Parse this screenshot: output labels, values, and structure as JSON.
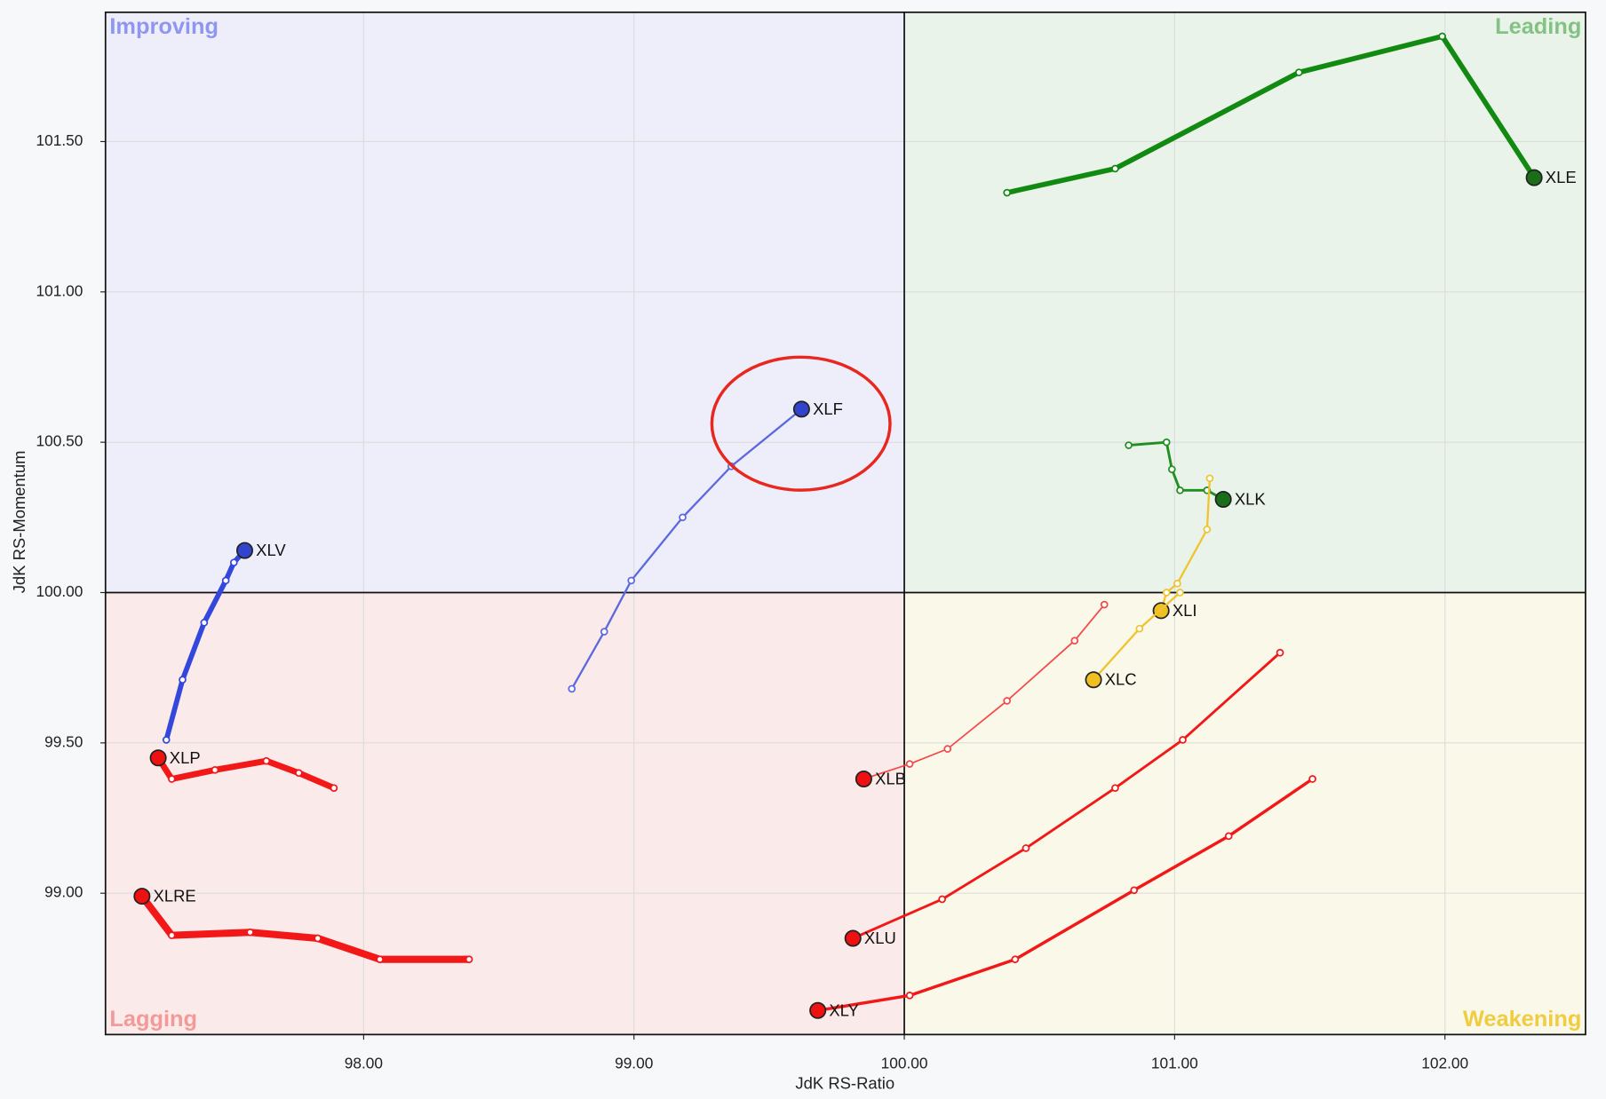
{
  "chart_data": {
    "type": "rrg",
    "x_label": "JdK RS-Ratio",
    "y_label": "JdK RS-Momentum",
    "quadrants": {
      "improving": "Improving",
      "leading": "Leading",
      "lagging": "Lagging",
      "weakening": "Weakening"
    },
    "xlim": [
      97.045,
      102.52
    ],
    "ylim": [
      98.53,
      101.93
    ],
    "xticks": [
      {
        "value": 98,
        "label": "98.00"
      },
      {
        "value": 99,
        "label": "99.00"
      },
      {
        "value": 100,
        "label": "100.00"
      },
      {
        "value": 101,
        "label": "101.00"
      },
      {
        "value": 102,
        "label": "102.00"
      }
    ],
    "yticks": [
      {
        "value": 99,
        "label": "99.00"
      },
      {
        "value": 99.5,
        "label": "99.50"
      },
      {
        "value": 100,
        "label": "100.00"
      },
      {
        "value": 100.5,
        "label": "100.50"
      },
      {
        "value": 101,
        "label": "101.00"
      },
      {
        "value": 101.5,
        "label": "101.50"
      }
    ],
    "grid": true,
    "series": [
      {
        "name": "XLE",
        "color": "#128a12",
        "head_color": "#1a6e1a",
        "line_width": 5,
        "x": [
          100.38,
          100.78,
          101.46,
          101.99,
          102.33
        ],
        "y": [
          101.33,
          101.41,
          101.73,
          101.85,
          101.38
        ]
      },
      {
        "name": "XLK",
        "color": "#1f8f1f",
        "head_color": "#1a6e1a",
        "line_width": 2.5,
        "x": [
          100.83,
          100.97,
          100.99,
          101.02,
          101.12,
          101.18
        ],
        "y": [
          100.49,
          100.5,
          100.41,
          100.34,
          100.34,
          100.31
        ]
      },
      {
        "name": "XLI",
        "color": "#efc42e",
        "head_color": "#f0c020",
        "line_width": 2,
        "x": [
          101.13,
          101.12,
          101.01,
          100.97,
          100.95
        ],
        "y": [
          100.38,
          100.21,
          100.03,
          100.0,
          99.94
        ]
      },
      {
        "name": "XLC",
        "color": "#efc42e",
        "head_color": "#f0c020",
        "line_width": 2,
        "x": [
          101.02,
          100.87,
          100.7
        ],
        "y": [
          100.0,
          99.88,
          99.71
        ]
      },
      {
        "name": "XLF",
        "color": "#5b68e0",
        "head_color": "#3344cc",
        "line_width": 2,
        "x": [
          98.77,
          98.89,
          98.99,
          99.18,
          99.36,
          99.62
        ],
        "y": [
          99.68,
          99.87,
          100.04,
          100.25,
          100.42,
          100.61
        ]
      },
      {
        "name": "XLV",
        "color": "#3347dd",
        "head_color": "#3344cc",
        "line_width": 5,
        "x": [
          97.27,
          97.33,
          97.41,
          97.49,
          97.52,
          97.56
        ],
        "y": [
          99.51,
          99.71,
          99.9,
          100.04,
          100.1,
          100.14
        ]
      },
      {
        "name": "XLP",
        "color": "#f21818",
        "head_color": "#ee1111",
        "line_width": 6,
        "x": [
          97.89,
          97.76,
          97.64,
          97.45,
          97.29,
          97.24
        ],
        "y": [
          99.35,
          99.4,
          99.44,
          99.41,
          99.38,
          99.45
        ]
      },
      {
        "name": "XLRE",
        "color": "#f21818",
        "head_color": "#ee1111",
        "line_width": 7,
        "x": [
          98.39,
          98.06,
          97.83,
          97.58,
          97.29,
          97.18
        ],
        "y": [
          98.78,
          98.78,
          98.85,
          98.87,
          98.86,
          98.99
        ]
      },
      {
        "name": "XLB",
        "color": "#f44848",
        "head_color": "#ee1111",
        "line_width": 1.5,
        "x": [
          100.74,
          100.63,
          100.38,
          100.16,
          100.02,
          99.85
        ],
        "y": [
          99.96,
          99.84,
          99.64,
          99.48,
          99.43,
          99.38
        ]
      },
      {
        "name": "XLU",
        "color": "#f21818",
        "head_color": "#ee1111",
        "line_width": 2.5,
        "x": [
          101.39,
          101.03,
          100.78,
          100.45,
          100.14,
          99.81
        ],
        "y": [
          99.8,
          99.51,
          99.35,
          99.15,
          98.98,
          98.85
        ]
      },
      {
        "name": "XLY",
        "color": "#f21818",
        "head_color": "#ee1111",
        "line_width": 3,
        "x": [
          101.51,
          101.2,
          100.85,
          100.41,
          100.02,
          99.68
        ],
        "y": [
          99.38,
          99.19,
          99.01,
          98.78,
          98.66,
          98.61
        ]
      }
    ]
  }
}
